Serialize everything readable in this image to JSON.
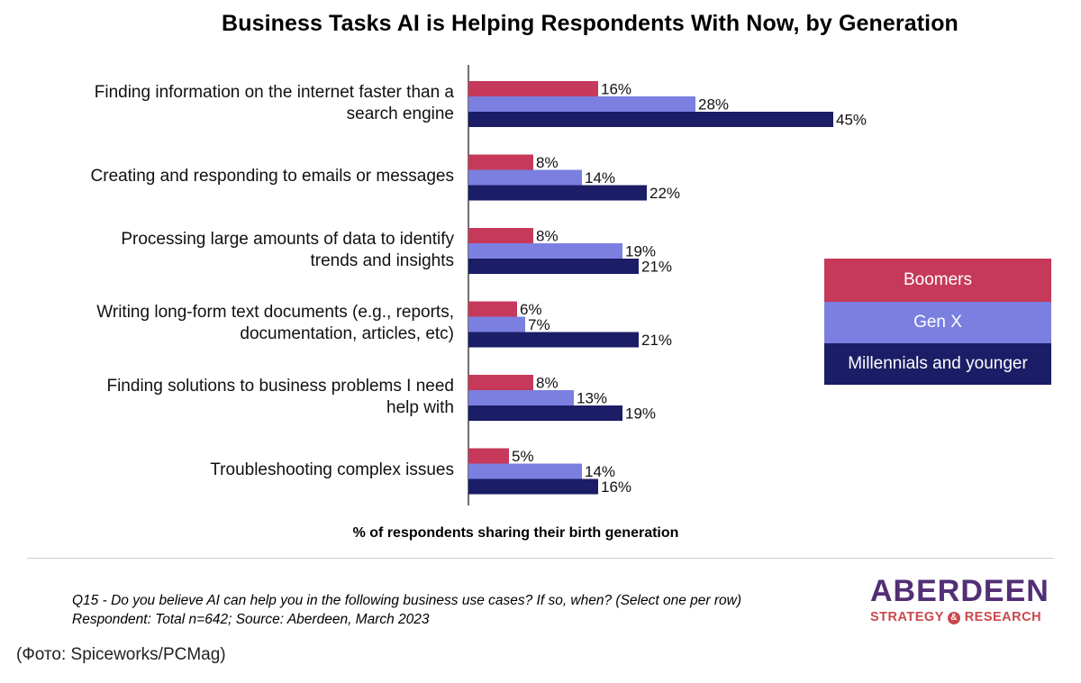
{
  "chart_data": {
    "type": "bar",
    "orientation": "horizontal",
    "title": "Business Tasks AI is Helping Respondents With Now, by Generation",
    "xlabel": "% of respondents sharing their birth generation",
    "ylabel": "",
    "xlim": [
      0,
      55
    ],
    "grid": false,
    "legend_position": "right",
    "categories": [
      [
        "Finding information on the internet faster than a",
        "search engine"
      ],
      [
        "Creating and responding to emails or messages"
      ],
      [
        "Processing large amounts of data to identify",
        "trends and insights"
      ],
      [
        "Writing long-form text documents (e.g., reports,",
        "documentation, articles, etc)"
      ],
      [
        "Finding solutions to business problems I need",
        "help with"
      ],
      [
        "Troubleshooting complex issues"
      ]
    ],
    "series": [
      {
        "name": "Boomers",
        "color": "#c6395a",
        "values": [
          16,
          8,
          8,
          6,
          8,
          5
        ],
        "labels": [
          "16%",
          "8%",
          "8%",
          "6%",
          "8%",
          "5%"
        ]
      },
      {
        "name": "Gen X",
        "color": "#7b7fe0",
        "values": [
          28,
          14,
          19,
          7,
          13,
          14
        ],
        "labels": [
          "28%",
          "14%",
          "19%",
          "7%",
          "13%",
          "14%"
        ]
      },
      {
        "name": "Millennials and younger",
        "color": "#1b1d66",
        "values": [
          45,
          22,
          21,
          21,
          19,
          16
        ],
        "labels": [
          "45%",
          "22%",
          "21%",
          "21%",
          "19%",
          "16%"
        ]
      }
    ]
  },
  "footnote": {
    "question": "Q15 - Do you believe AI can help you in the following business use cases? If so, when? (Select one per row)",
    "respondents": "Respondent: Total n=642; Source: Aberdeen, March 2023"
  },
  "brand": {
    "name": "ABERDEEN",
    "sub_left": "STRATEGY",
    "amp": "&",
    "sub_right": "RESEARCH"
  },
  "credit": "(Фото: Spiceworks/PCMag)"
}
